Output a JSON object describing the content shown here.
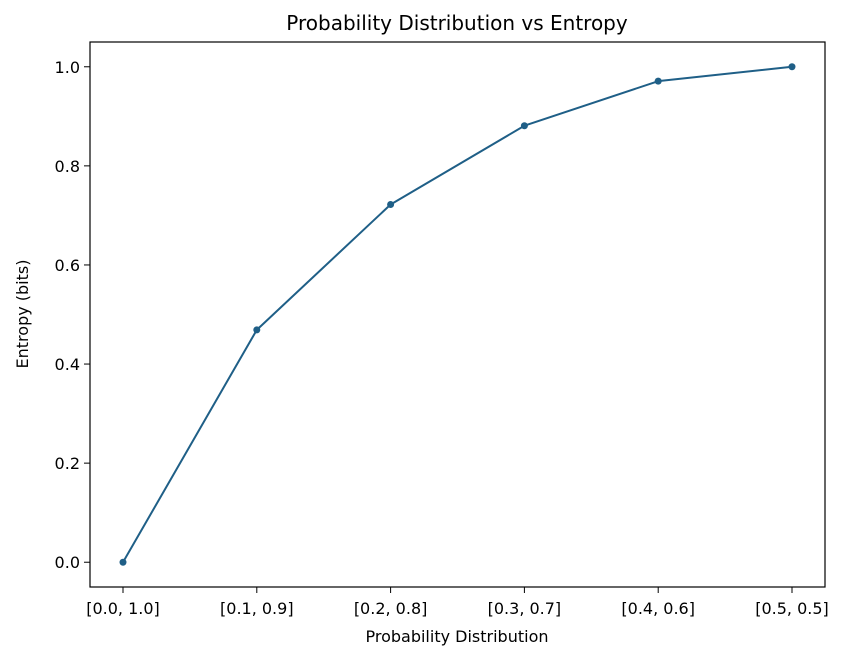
{
  "chart_data": {
    "type": "line",
    "title": "Probability Distribution vs Entropy",
    "xlabel": "Probability Distribution",
    "ylabel": "Entropy (bits)",
    "categories": [
      "[0.0, 1.0]",
      "[0.1, 0.9]",
      "[0.2, 0.8]",
      "[0.3, 0.7]",
      "[0.4, 0.6]",
      "[0.5, 0.5]"
    ],
    "series": [
      {
        "values": [
          0.0,
          0.469,
          0.722,
          0.881,
          0.971,
          1.0
        ]
      }
    ],
    "ylim": [
      -0.05,
      1.05
    ],
    "yticks": [
      "0.0",
      "0.2",
      "0.4",
      "0.6",
      "0.8",
      "1.0"
    ],
    "ytick_values": [
      0.0,
      0.2,
      0.4,
      0.6,
      0.8,
      1.0
    ],
    "grid": false,
    "line_color": "#1f5f87",
    "marker": "circle"
  }
}
